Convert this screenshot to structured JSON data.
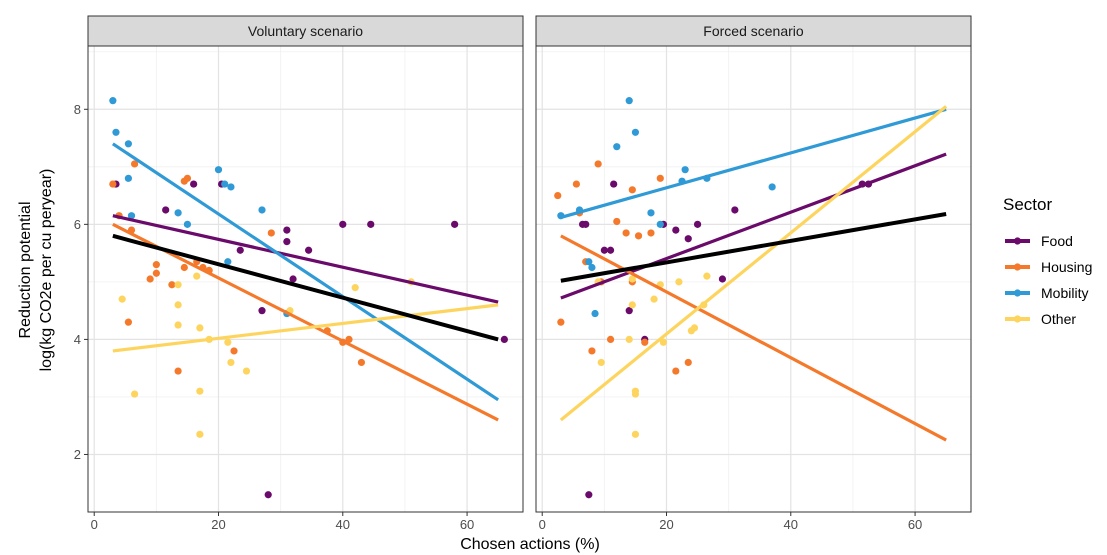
{
  "chart_data": {
    "type": "scatter",
    "xlabel": "Chosen actions (%)",
    "ylabel": [
      "Reduction potential",
      "log(kg CO2e per cu peryear)"
    ],
    "xlim": [
      -1,
      69
    ],
    "ylim": [
      1,
      9.1
    ],
    "x_ticks": [
      0,
      20,
      40,
      60
    ],
    "y_ticks": [
      2,
      4,
      6,
      8
    ],
    "grid": true,
    "legend": {
      "title": "Sector",
      "placement": "right",
      "entries": [
        "Food",
        "Housing",
        "Mobility",
        "Other"
      ]
    },
    "colors": {
      "Food": "#6a0a6a",
      "Housing": "#f4792b",
      "Mobility": "#2f9ad6",
      "Other": "#fdd55e",
      "Overall": "#000000"
    },
    "panels": [
      {
        "title": "Voluntary scenario",
        "points": {
          "Food": [
            [
              3.5,
              6.7
            ],
            [
              11.5,
              6.25
            ],
            [
              16,
              6.7
            ],
            [
              20.5,
              6.7
            ],
            [
              23.5,
              5.55
            ],
            [
              27,
              4.5
            ],
            [
              28,
              1.3
            ],
            [
              31,
              5.9
            ],
            [
              31,
              5.7
            ],
            [
              32,
              5.05
            ],
            [
              34.5,
              5.55
            ],
            [
              40,
              6.0
            ],
            [
              44.5,
              6.0
            ],
            [
              58,
              6.0
            ],
            [
              66,
              4.0
            ]
          ],
          "Housing": [
            [
              3,
              6.7
            ],
            [
              4,
              6.15
            ],
            [
              5.5,
              4.3
            ],
            [
              6,
              5.9
            ],
            [
              6.5,
              7.05
            ],
            [
              9,
              5.05
            ],
            [
              10,
              5.3
            ],
            [
              10,
              5.15
            ],
            [
              12.5,
              4.95
            ],
            [
              13.5,
              3.45
            ],
            [
              14.5,
              6.75
            ],
            [
              14.5,
              5.25
            ],
            [
              15,
              6.8
            ],
            [
              16.5,
              5.35
            ],
            [
              17.5,
              5.25
            ],
            [
              18.5,
              5.2
            ],
            [
              22.5,
              3.8
            ],
            [
              28.5,
              5.85
            ],
            [
              37.5,
              4.15
            ],
            [
              40,
              3.95
            ],
            [
              41,
              4.0
            ],
            [
              43,
              3.6
            ]
          ],
          "Mobility": [
            [
              3,
              8.15
            ],
            [
              3.5,
              7.6
            ],
            [
              5.5,
              7.4
            ],
            [
              5.5,
              6.8
            ],
            [
              6,
              6.15
            ],
            [
              13.5,
              6.2
            ],
            [
              15,
              6.0
            ],
            [
              20,
              6.95
            ],
            [
              21,
              6.7
            ],
            [
              22,
              6.65
            ],
            [
              21.5,
              5.35
            ],
            [
              27,
              6.25
            ],
            [
              31,
              4.45
            ]
          ],
          "Other": [
            [
              4.5,
              4.7
            ],
            [
              6.5,
              3.05
            ],
            [
              13.5,
              4.95
            ],
            [
              13.5,
              4.6
            ],
            [
              13.5,
              4.25
            ],
            [
              16.5,
              5.1
            ],
            [
              17,
              3.1
            ],
            [
              17,
              2.35
            ],
            [
              17,
              4.2
            ],
            [
              18.5,
              4.0
            ],
            [
              21.5,
              3.95
            ],
            [
              22,
              3.6
            ],
            [
              24.5,
              3.45
            ],
            [
              31.5,
              4.5
            ],
            [
              42,
              4.9
            ],
            [
              51,
              5.0
            ]
          ]
        },
        "fits": {
          "Food": [
            [
              3,
              6.15
            ],
            [
              65,
              4.65
            ]
          ],
          "Housing": [
            [
              3,
              6.0
            ],
            [
              65,
              2.6
            ]
          ],
          "Mobility": [
            [
              3,
              7.4
            ],
            [
              65,
              2.95
            ]
          ],
          "Other": [
            [
              3,
              3.8
            ],
            [
              65,
              4.6
            ]
          ],
          "Overall": [
            [
              3,
              5.8
            ],
            [
              65,
              4.0
            ]
          ]
        }
      },
      {
        "title": "Forced scenario",
        "points": {
          "Food": [
            [
              6.5,
              6.0
            ],
            [
              7,
              6.0
            ],
            [
              7.5,
              1.3
            ],
            [
              10,
              5.55
            ],
            [
              11,
              5.55
            ],
            [
              11.5,
              6.7
            ],
            [
              14,
              4.5
            ],
            [
              16.5,
              4.0
            ],
            [
              19.5,
              6.0
            ],
            [
              21.5,
              5.9
            ],
            [
              23.5,
              5.75
            ],
            [
              25,
              6.0
            ],
            [
              29,
              5.05
            ],
            [
              31,
              6.25
            ],
            [
              51.5,
              6.7
            ],
            [
              52.5,
              6.7
            ]
          ],
          "Housing": [
            [
              2.5,
              6.5
            ],
            [
              3,
              4.3
            ],
            [
              5.5,
              6.7
            ],
            [
              6,
              6.2
            ],
            [
              7,
              5.35
            ],
            [
              8,
              3.8
            ],
            [
              9,
              7.05
            ],
            [
              9.5,
              5.0
            ],
            [
              11,
              4.0
            ],
            [
              12,
              6.05
            ],
            [
              13.5,
              5.85
            ],
            [
              14.5,
              6.6
            ],
            [
              14.5,
              5.0
            ],
            [
              15.5,
              5.8
            ],
            [
              16.5,
              3.95
            ],
            [
              17.5,
              5.85
            ],
            [
              19,
              6.8
            ],
            [
              21.5,
              3.45
            ],
            [
              23.5,
              3.6
            ]
          ],
          "Mobility": [
            [
              3,
              6.15
            ],
            [
              6,
              6.25
            ],
            [
              7.5,
              5.35
            ],
            [
              8,
              5.25
            ],
            [
              8.5,
              4.45
            ],
            [
              12,
              7.35
            ],
            [
              14,
              8.15
            ],
            [
              15,
              7.6
            ],
            [
              17.5,
              6.2
            ],
            [
              19,
              6.0
            ],
            [
              22.5,
              6.75
            ],
            [
              23,
              6.95
            ],
            [
              26.5,
              6.8
            ],
            [
              37,
              6.65
            ]
          ],
          "Other": [
            [
              9,
              5.0
            ],
            [
              9.5,
              3.6
            ],
            [
              14,
              4.0
            ],
            [
              14.5,
              5.05
            ],
            [
              14.5,
              4.6
            ],
            [
              15,
              3.1
            ],
            [
              15,
              3.05
            ],
            [
              15,
              2.35
            ],
            [
              18,
              4.7
            ],
            [
              19,
              4.95
            ],
            [
              19.5,
              3.95
            ],
            [
              22,
              5.0
            ],
            [
              24,
              4.15
            ],
            [
              24.5,
              4.2
            ],
            [
              26,
              4.6
            ],
            [
              26.5,
              5.1
            ]
          ]
        },
        "fits": {
          "Food": [
            [
              3,
              4.72
            ],
            [
              65,
              7.22
            ]
          ],
          "Housing": [
            [
              3,
              5.8
            ],
            [
              65,
              2.25
            ]
          ],
          "Mobility": [
            [
              3,
              6.12
            ],
            [
              65,
              8.0
            ]
          ],
          "Other": [
            [
              3,
              2.6
            ],
            [
              65,
              8.05
            ]
          ],
          "Overall": [
            [
              3,
              5.02
            ],
            [
              65,
              6.18
            ]
          ]
        }
      }
    ]
  }
}
